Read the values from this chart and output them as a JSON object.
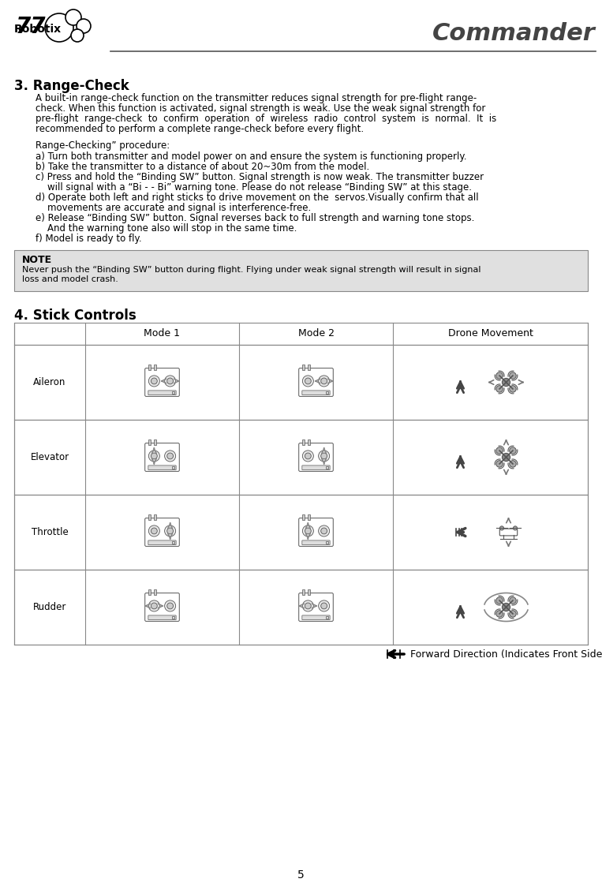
{
  "title": "Commander",
  "page_number": "5",
  "section3_title": "3. Range-Check",
  "section3_procedure_title": "Range-Checking” procedure:",
  "note_title": "NOTE",
  "note_text": "Never push the “Binding SW” button during flight. Flying under weak signal strength will result in signal\nloss and model crash.",
  "section4_title": "4. Stick Controls",
  "table_headers": [
    "",
    "Mode 1",
    "Mode 2",
    "Drone Movement"
  ],
  "table_rows": [
    "Aileron",
    "Elevator",
    "Throttle",
    "Rudder"
  ],
  "forward_direction_text": "Forward Direction (Indicates Front Side)",
  "bg_color": "#ffffff",
  "text_color": "#000000",
  "note_bg": "#e0e0e0",
  "table_border_color": "#888888",
  "header_line_color": "#555555",
  "para_lines": [
    "A built-in range-check function on the transmitter reduces signal strength for pre-flight range-",
    "check. When this function is activated, signal strength is weak. Use the weak signal strength for",
    "pre-flight  range-check  to  confirm  operation  of  wireless  radio  control  system  is  normal.  It  is",
    "recommended to perform a complete range-check before every flight."
  ],
  "steps": [
    [
      "a) Turn both transmitter and model power on and ensure the system is functioning properly.",
      []
    ],
    [
      "b) Take the transmitter to a distance of about 20~30m from the model.",
      []
    ],
    [
      "c) Press and hold the “Binding SW” button. Signal strength is now weak. The transmitter buzzer",
      [
        "    will signal with a “Bi - - Bi” warning tone. Please do not release “Binding SW” at this stage."
      ]
    ],
    [
      "d) Operate both left and right sticks to drive movement on the  servos.Visually confirm that all",
      [
        "    movements are accurate and signal is interference-free."
      ]
    ],
    [
      "e) Release “Binding SW” button. Signal reverses back to full strength and warning tone stops.",
      [
        "    And the warning tone also will stop in the same time."
      ]
    ],
    [
      "f) Model is ready to fly.",
      []
    ]
  ]
}
